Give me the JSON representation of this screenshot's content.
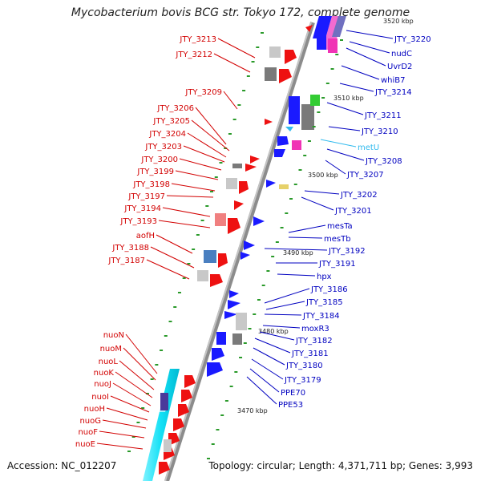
{
  "title": "Mycobacterium bovis BCG str. Tokyo 172, complete genome",
  "footer": {
    "accession": "Accession: NC_012207",
    "topology": "Topology: circular; Length: 4,371,711 bp; Genes: 3,993"
  },
  "colors": {
    "backbone": "#8c8c8c",
    "left_label": "#d20000",
    "right_label": "#0000c0",
    "highlight_label": "#33bbee",
    "tick_mark": "#2a9a2a",
    "ruler_text": "#222222"
  },
  "left_labels": [
    "JTY_3213",
    "JTY_3212",
    "JTY_3209",
    "JTY_3206",
    "JTY_3205",
    "JTY_3204",
    "JTY_3203",
    "JTY_3200",
    "JTY_3199",
    "JTY_3198",
    "JTY_3197",
    "JTY_3194",
    "JTY_3193",
    "aofH",
    "JTY_3188",
    "JTY_3187",
    "nuoN",
    "nuoM",
    "nuoL",
    "nuoK",
    "nuoJ",
    "nuoI",
    "nuoH",
    "nuoG",
    "nuoF",
    "nuoE"
  ],
  "right_labels": [
    "JTY_3220",
    "nudC",
    "UvrD2",
    "whiB7",
    "JTY_3214",
    "JTY_3211",
    "JTY_3210",
    "metU",
    "JTY_3208",
    "JTY_3207",
    "JTY_3202",
    "JTY_3201",
    "mesTa",
    "mesTb",
    "JTY_3192",
    "JTY_3191",
    "hpx",
    "JTY_3186",
    "JTY_3185",
    "JTY_3184",
    "moxR3",
    "JTY_3182",
    "JTY_3181",
    "JTY_3180",
    "JTY_3179",
    "PPE70",
    "PPE53"
  ],
  "highlight_label": "metU",
  "ruler": [
    "3520 kbp",
    "3510 kbp",
    "3500 kbp",
    "3490 kbp",
    "3480 kbp",
    "3470 kbp"
  ]
}
